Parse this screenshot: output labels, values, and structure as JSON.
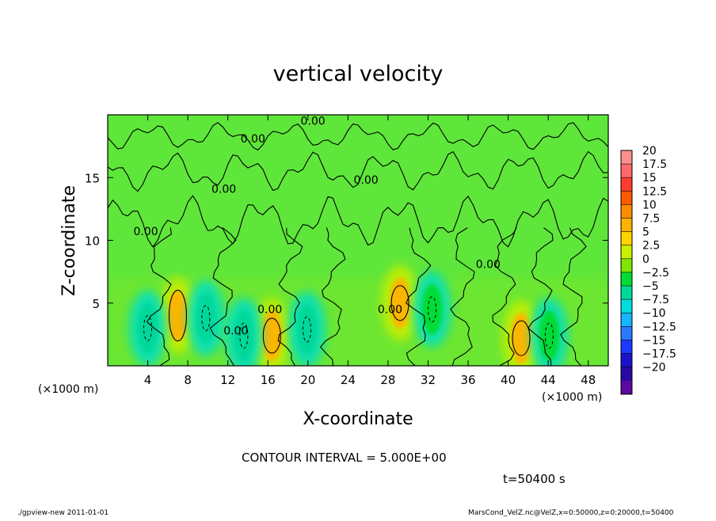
{
  "chart_data": {
    "type": "heatmap",
    "title": "vertical velocity",
    "xlabel": "X-coordinate",
    "ylabel": "Z-coordinate",
    "x_unit": "(×1000 m)",
    "y_unit": "(×1000 m)",
    "xlim": [
      0,
      50
    ],
    "ylim": [
      0,
      20
    ],
    "x_ticks": [
      "4",
      "8",
      "12",
      "16",
      "20",
      "24",
      "28",
      "32",
      "36",
      "40",
      "44",
      "48"
    ],
    "y_ticks": [
      "5",
      "10",
      "15"
    ],
    "colorbar": {
      "labels": [
        "20",
        "17.5",
        "15",
        "12.5",
        "10",
        "7.5",
        "5",
        "2.5",
        "0",
        "−2.5",
        "−5",
        "−7.5",
        "−10",
        "−12.5",
        "−15",
        "−17.5",
        "−20"
      ],
      "colors": [
        "#ff8f8f",
        "#ff6a6a",
        "#ff3d2e",
        "#ff5a00",
        "#ff8c00",
        "#ffb300",
        "#ffd400",
        "#c8f000",
        "#7ee600",
        "#00dd33",
        "#00d89a",
        "#00dede",
        "#15b5ff",
        "#2a78ff",
        "#1c3aff",
        "#1a13cc",
        "#2a0aa0",
        "#5a0aa0"
      ]
    },
    "contour_label": "0.00",
    "features": [
      {
        "x": 7.0,
        "z": 4.0,
        "sign": "positive",
        "peak": 7.5
      },
      {
        "x": 16.4,
        "z": 2.4,
        "sign": "positive",
        "peak": 6
      },
      {
        "x": 29.2,
        "z": 5.0,
        "sign": "positive",
        "peak": 6
      },
      {
        "x": 41.3,
        "z": 2.2,
        "sign": "positive",
        "peak": 6
      },
      {
        "x": 9.8,
        "z": 3.8,
        "sign": "negative",
        "peak": -6
      },
      {
        "x": 13.6,
        "z": 2.4,
        "sign": "negative",
        "peak": -7
      },
      {
        "x": 4.0,
        "z": 3.0,
        "sign": "negative",
        "peak": -5
      },
      {
        "x": 19.9,
        "z": 2.9,
        "sign": "negative",
        "peak": -5
      },
      {
        "x": 32.4,
        "z": 4.5,
        "sign": "negative",
        "peak": -4
      },
      {
        "x": 44.1,
        "z": 2.4,
        "sign": "negative",
        "peak": -4
      }
    ]
  },
  "annotations": {
    "contour_interval": "CONTOUR INTERVAL = 5.000E+00",
    "time": "t=50400 s",
    "footer_left": "./gpview-new   2011-01-01",
    "footer_right": "MarsCond_VelZ.nc@VelZ,x=0:50000,z=0:20000,t=50400"
  }
}
